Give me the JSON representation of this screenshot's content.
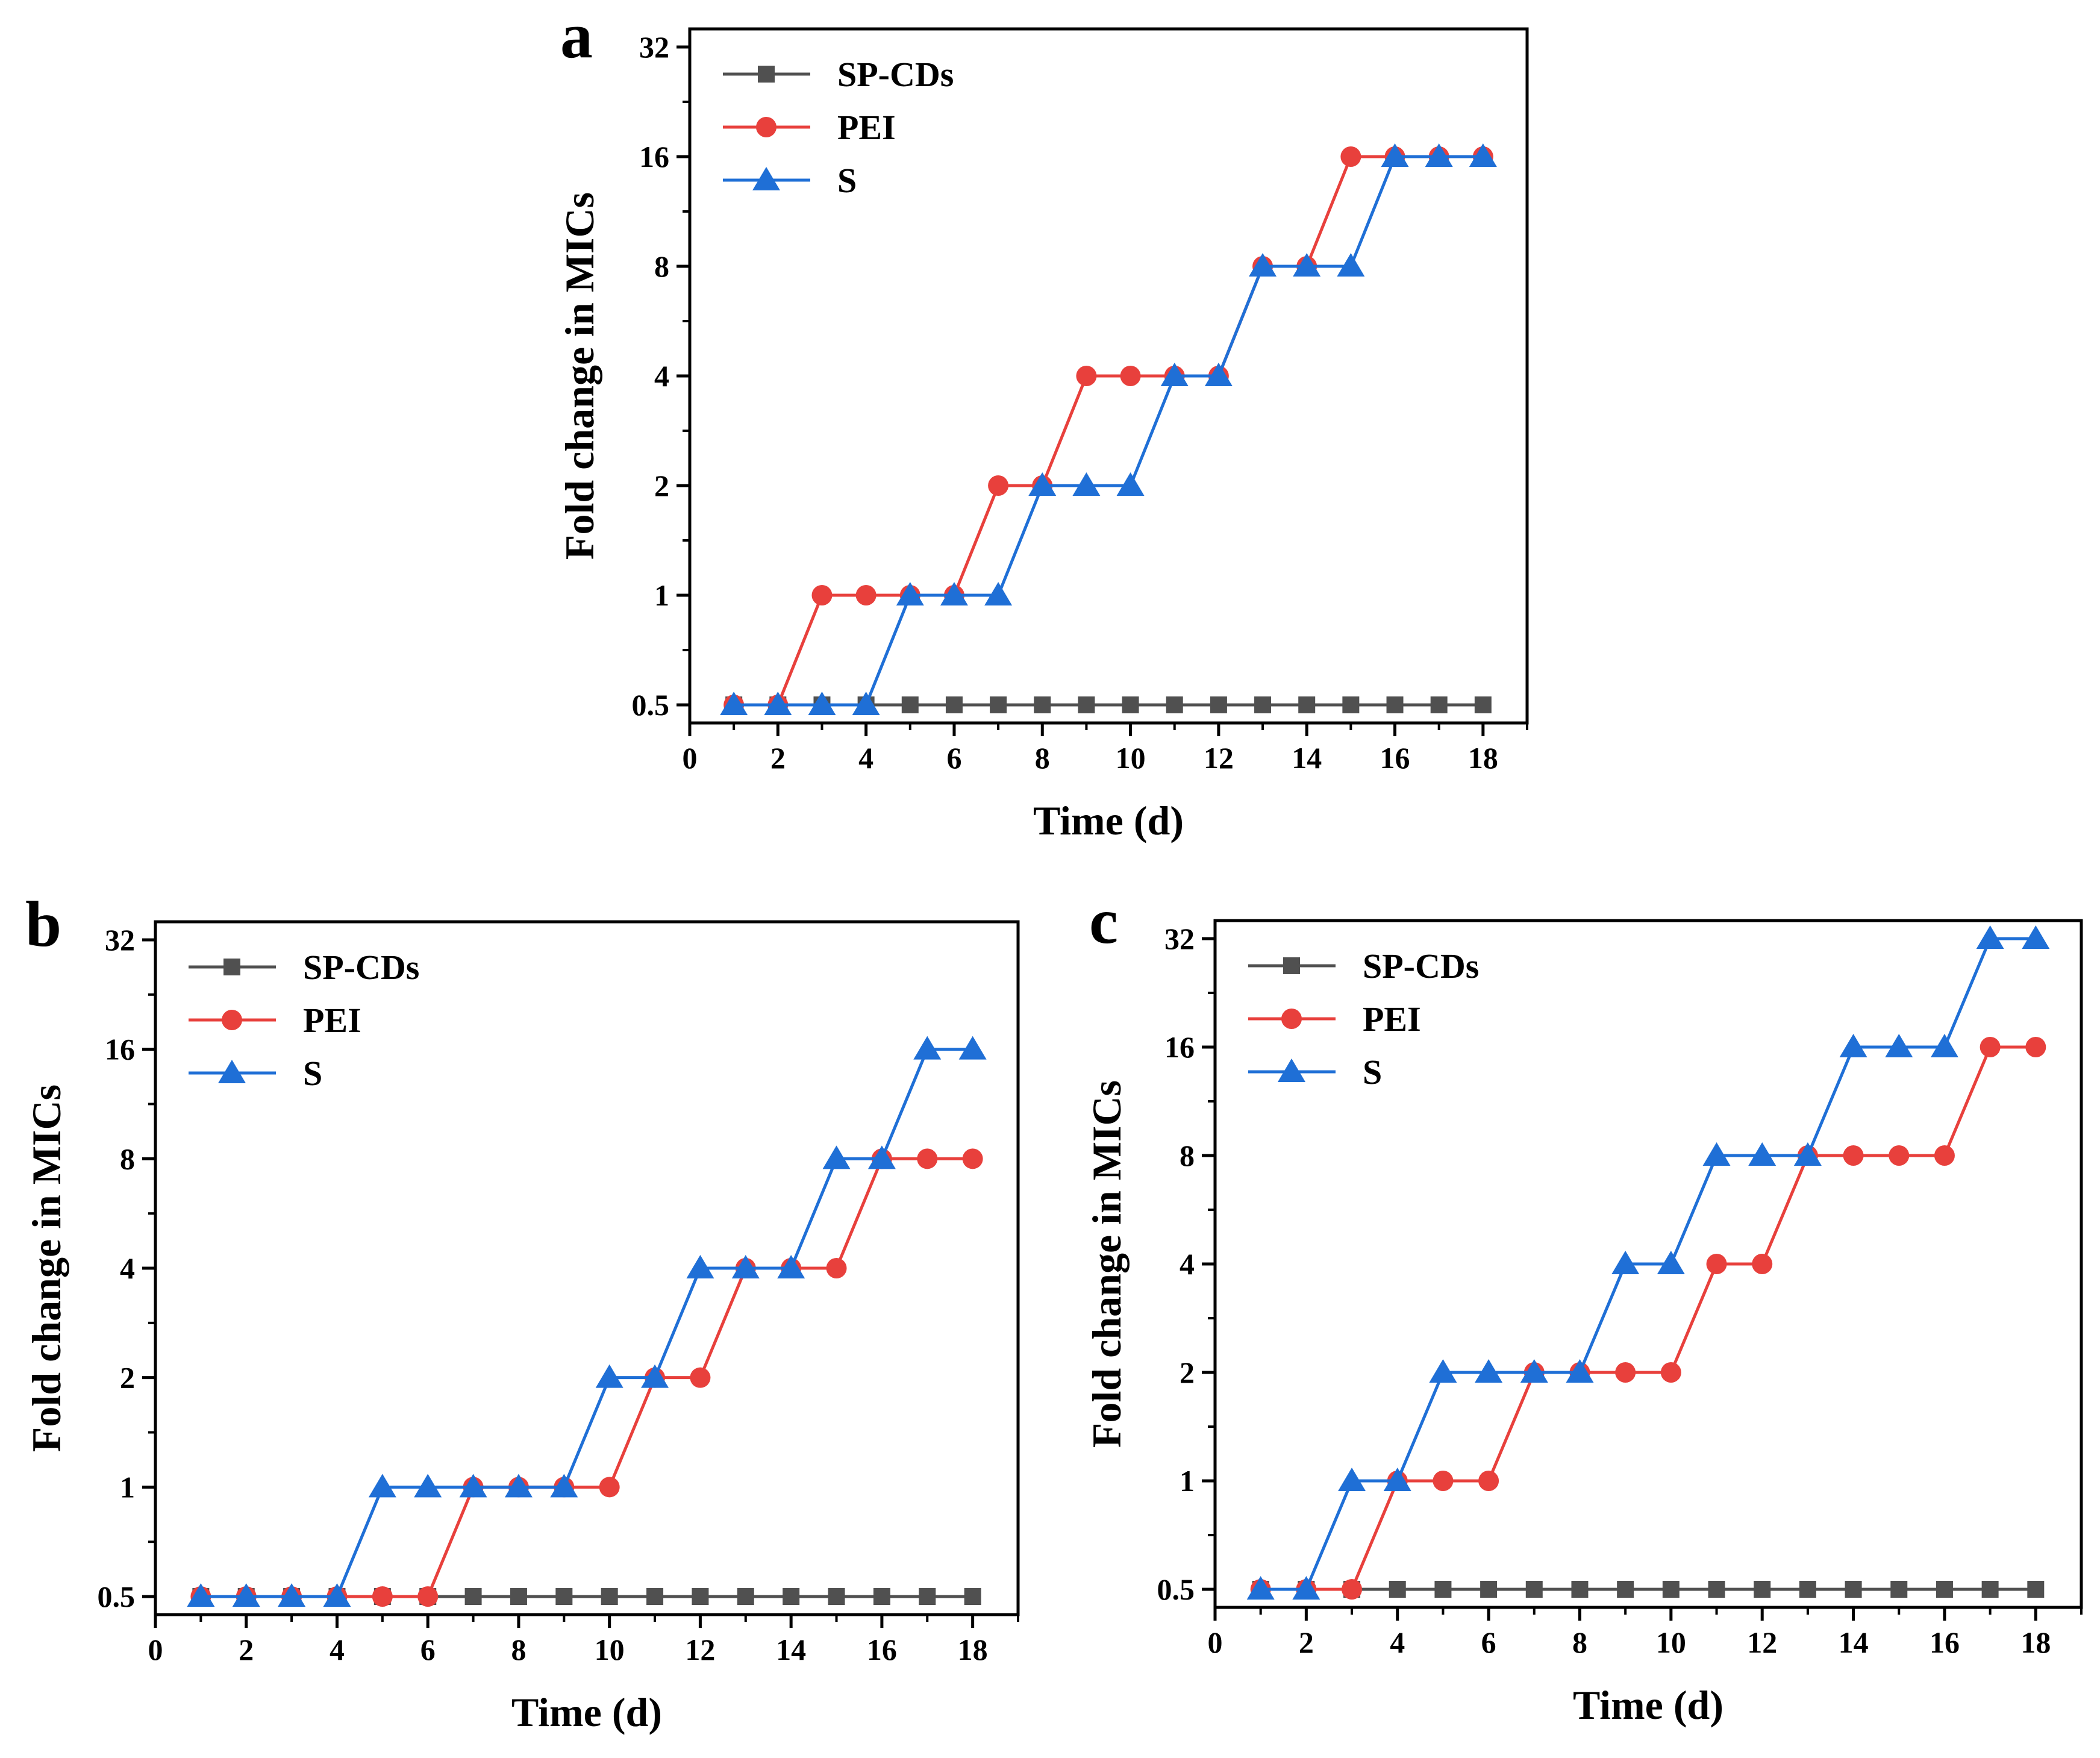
{
  "chart_data": [
    {
      "panel": "a",
      "type": "line",
      "xlabel": "Time (d)",
      "ylabel": "Fold change in MICs",
      "xlim": [
        0,
        19
      ],
      "xticks": [
        0,
        2,
        4,
        6,
        8,
        10,
        12,
        14,
        16,
        18
      ],
      "ylim": [
        0.5,
        32
      ],
      "yscale": "log2",
      "yticks": [
        "0.5",
        "1",
        "2",
        "4",
        "8",
        "16",
        "32"
      ],
      "legend_position": "top-left",
      "x": [
        1,
        2,
        3,
        4,
        5,
        6,
        7,
        8,
        9,
        10,
        11,
        12,
        13,
        14,
        15,
        16,
        17,
        18
      ],
      "series": [
        {
          "name": "SP-CDs",
          "color": "#505050",
          "marker": "square",
          "values": [
            0.5,
            0.5,
            0.5,
            0.5,
            0.5,
            0.5,
            0.5,
            0.5,
            0.5,
            0.5,
            0.5,
            0.5,
            0.5,
            0.5,
            0.5,
            0.5,
            0.5,
            0.5
          ]
        },
        {
          "name": "PEI",
          "color": "#e8403c",
          "marker": "circle",
          "values": [
            0.5,
            0.5,
            1,
            1,
            1,
            1,
            2,
            2,
            4,
            4,
            4,
            4,
            8,
            8,
            16,
            16,
            16,
            16
          ]
        },
        {
          "name": "S",
          "color": "#1f6fd6",
          "marker": "triangle",
          "values": [
            0.5,
            0.5,
            0.5,
            0.5,
            1,
            1,
            1,
            2,
            2,
            2,
            4,
            4,
            8,
            8,
            8,
            16,
            16,
            16
          ]
        }
      ]
    },
    {
      "panel": "b",
      "type": "line",
      "xlabel": "Time (d)",
      "ylabel": "Fold change in MICs",
      "xlim": [
        0,
        19
      ],
      "xticks": [
        0,
        2,
        4,
        6,
        8,
        10,
        12,
        14,
        16,
        18
      ],
      "ylim": [
        0.5,
        32
      ],
      "yscale": "log2",
      "yticks": [
        "0.5",
        "1",
        "2",
        "4",
        "8",
        "16",
        "32"
      ],
      "legend_position": "top-left",
      "x": [
        1,
        2,
        3,
        4,
        5,
        6,
        7,
        8,
        9,
        10,
        11,
        12,
        13,
        14,
        15,
        16,
        17,
        18
      ],
      "series": [
        {
          "name": "SP-CDs",
          "color": "#505050",
          "marker": "square",
          "values": [
            0.5,
            0.5,
            0.5,
            0.5,
            0.5,
            0.5,
            0.5,
            0.5,
            0.5,
            0.5,
            0.5,
            0.5,
            0.5,
            0.5,
            0.5,
            0.5,
            0.5,
            0.5
          ]
        },
        {
          "name": "PEI",
          "color": "#e8403c",
          "marker": "circle",
          "values": [
            0.5,
            0.5,
            0.5,
            0.5,
            0.5,
            0.5,
            1,
            1,
            1,
            1,
            2,
            2,
            4,
            4,
            4,
            8,
            8,
            8
          ]
        },
        {
          "name": "S",
          "color": "#1f6fd6",
          "marker": "triangle",
          "values": [
            0.5,
            0.5,
            0.5,
            0.5,
            1,
            1,
            1,
            1,
            1,
            2,
            2,
            4,
            4,
            4,
            8,
            8,
            16,
            16
          ]
        }
      ]
    },
    {
      "panel": "c",
      "type": "line",
      "xlabel": "Time (d)",
      "ylabel": "Fold change in MICs",
      "xlim": [
        0,
        19
      ],
      "xticks": [
        0,
        2,
        4,
        6,
        8,
        10,
        12,
        14,
        16,
        18
      ],
      "ylim": [
        0.5,
        32
      ],
      "yscale": "log2",
      "yticks": [
        "0.5",
        "1",
        "2",
        "4",
        "8",
        "16",
        "32"
      ],
      "legend_position": "top-left",
      "x": [
        1,
        2,
        3,
        4,
        5,
        6,
        7,
        8,
        9,
        10,
        11,
        12,
        13,
        14,
        15,
        16,
        17,
        18
      ],
      "series": [
        {
          "name": "SP-CDs",
          "color": "#505050",
          "marker": "square",
          "values": [
            0.5,
            0.5,
            0.5,
            0.5,
            0.5,
            0.5,
            0.5,
            0.5,
            0.5,
            0.5,
            0.5,
            0.5,
            0.5,
            0.5,
            0.5,
            0.5,
            0.5,
            0.5
          ]
        },
        {
          "name": "PEI",
          "color": "#e8403c",
          "marker": "circle",
          "values": [
            0.5,
            0.5,
            0.5,
            1,
            1,
            1,
            2,
            2,
            2,
            2,
            4,
            4,
            8,
            8,
            8,
            8,
            16,
            16
          ]
        },
        {
          "name": "S",
          "color": "#1f6fd6",
          "marker": "triangle",
          "values": [
            0.5,
            0.5,
            1,
            1,
            2,
            2,
            2,
            2,
            4,
            4,
            8,
            8,
            8,
            16,
            16,
            16,
            32,
            32
          ]
        }
      ]
    }
  ]
}
